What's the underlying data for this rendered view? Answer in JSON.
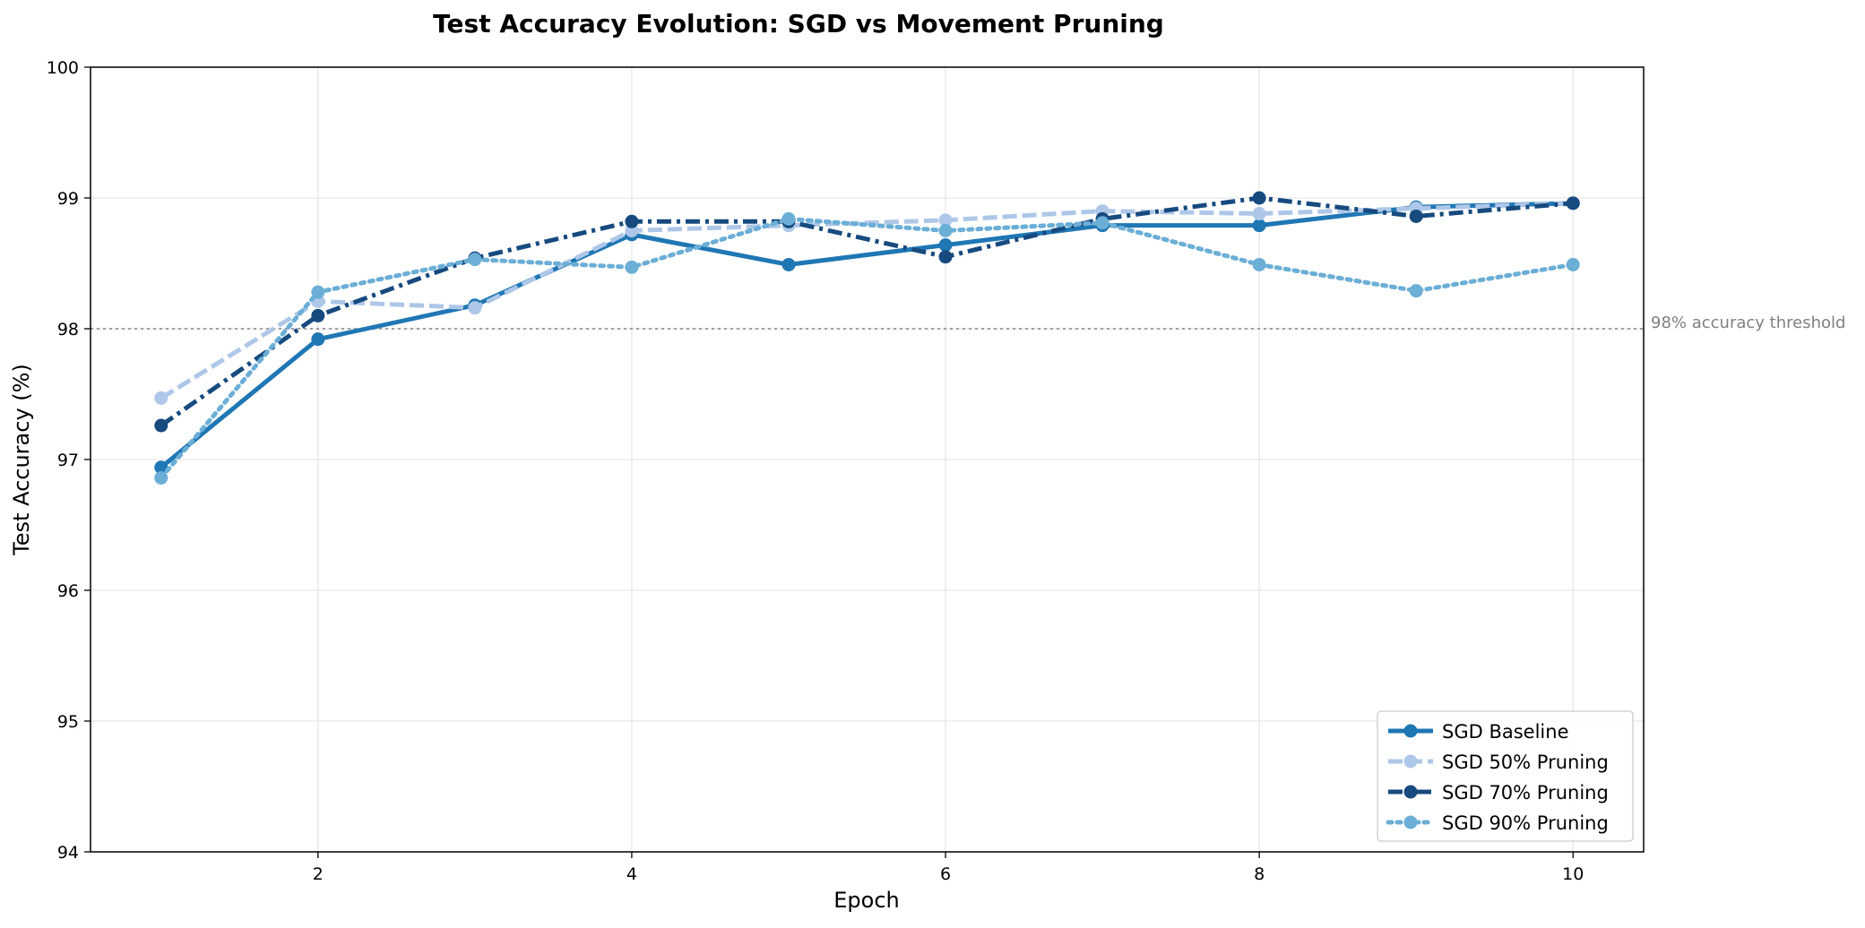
{
  "chart_data": {
    "type": "line",
    "title": "Test Accuracy Evolution: SGD vs Movement Pruning",
    "xlabel": "Epoch",
    "ylabel": "Test Accuracy (%)",
    "x": [
      1,
      2,
      3,
      4,
      5,
      6,
      7,
      8,
      9,
      10
    ],
    "xlim": [
      0.55,
      10.45
    ],
    "ylim": [
      94,
      100
    ],
    "xticks": [
      2,
      4,
      6,
      8,
      10
    ],
    "yticks": [
      94,
      95,
      96,
      97,
      98,
      99,
      100
    ],
    "grid": true,
    "legend_position": "bottom-right",
    "series": [
      {
        "name": "SGD Baseline",
        "values": [
          96.94,
          97.92,
          98.18,
          98.72,
          98.49,
          98.64,
          98.79,
          98.79,
          98.93,
          98.96
        ],
        "color": "#1f77b4",
        "style": "solid"
      },
      {
        "name": "SGD 50% Pruning",
        "values": [
          97.47,
          98.21,
          98.16,
          98.75,
          98.79,
          98.83,
          98.9,
          98.88,
          98.92,
          98.96
        ],
        "color": "#aec7e8",
        "style": "dashed"
      },
      {
        "name": "SGD 70% Pruning",
        "values": [
          97.26,
          98.1,
          98.54,
          98.82,
          98.82,
          98.55,
          98.84,
          99.0,
          98.86,
          98.96
        ],
        "color": "#174a7e",
        "style": "dashdot"
      },
      {
        "name": "SGD 90% Pruning",
        "values": [
          96.86,
          98.28,
          98.53,
          98.47,
          98.84,
          98.75,
          98.81,
          98.49,
          98.29,
          98.49
        ],
        "color": "#6baed6",
        "style": "dotted"
      }
    ],
    "reference_line": {
      "y": 98,
      "label": "98% accuracy threshold",
      "color": "#a0a0a0"
    }
  }
}
